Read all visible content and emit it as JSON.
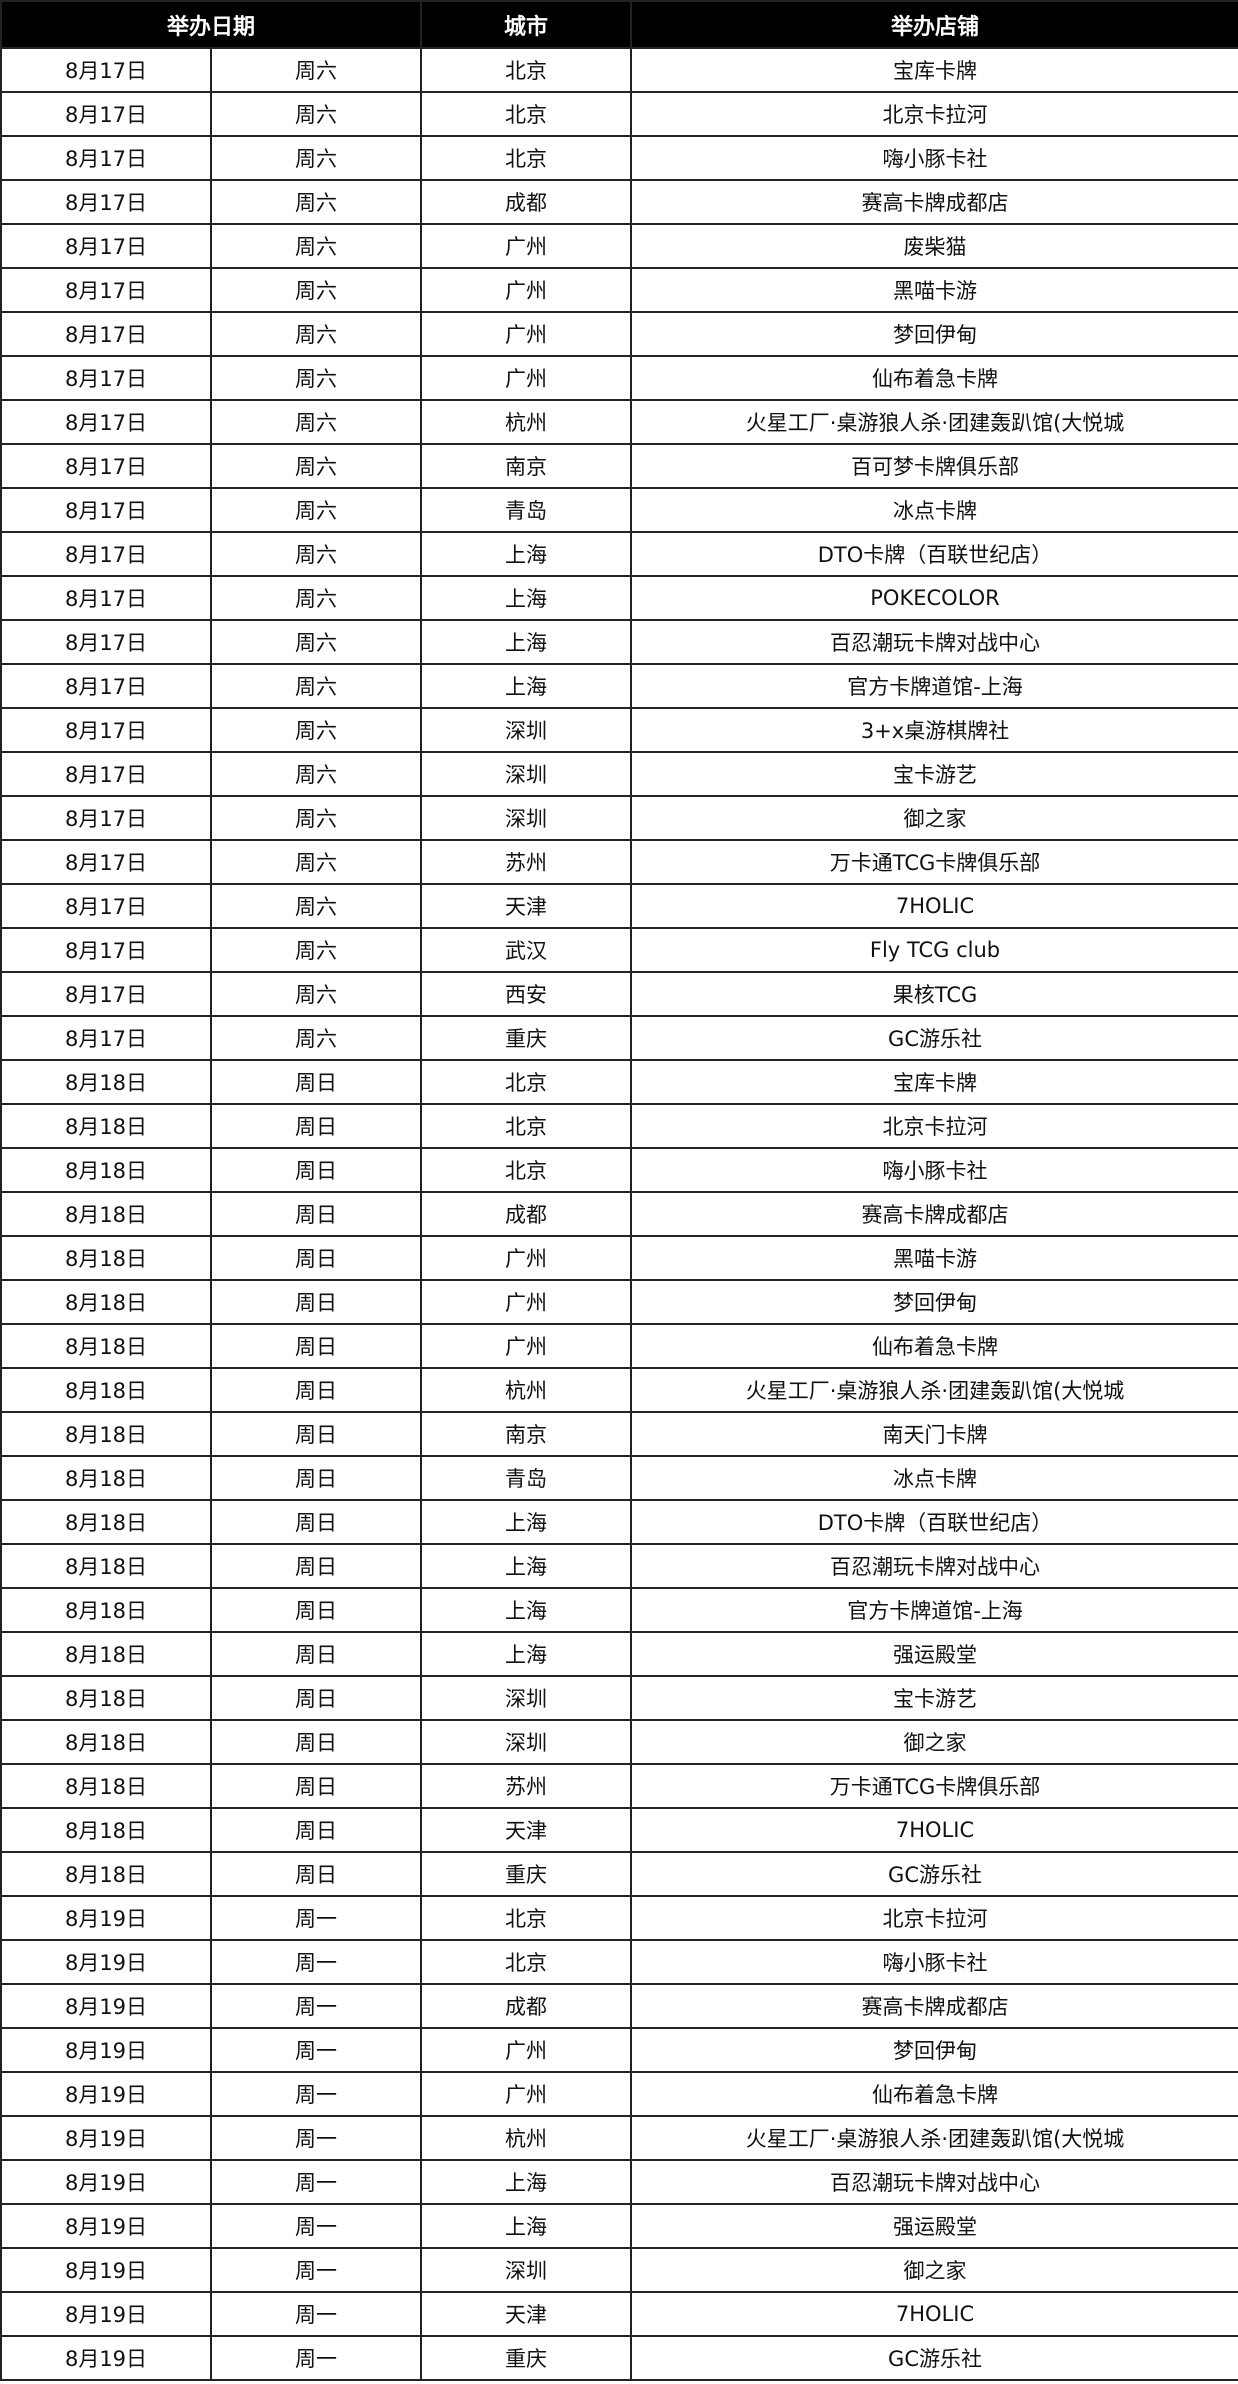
{
  "table": {
    "headers": [
      "举办日期",
      "城市",
      "举办店铺"
    ],
    "rows": [
      [
        "8月17日",
        "周六",
        "北京",
        "宝库卡牌"
      ],
      [
        "8月17日",
        "周六",
        "北京",
        "北京卡拉河"
      ],
      [
        "8月17日",
        "周六",
        "北京",
        "嗨小豚卡社"
      ],
      [
        "8月17日",
        "周六",
        "成都",
        "赛高卡牌成都店"
      ],
      [
        "8月17日",
        "周六",
        "广州",
        "废柴猫"
      ],
      [
        "8月17日",
        "周六",
        "广州",
        "黑喵卡游"
      ],
      [
        "8月17日",
        "周六",
        "广州",
        "梦回伊甸"
      ],
      [
        "8月17日",
        "周六",
        "广州",
        "仙布着急卡牌"
      ],
      [
        "8月17日",
        "周六",
        "杭州",
        "火星工厂·桌游狼人杀·团建轰趴馆(大悦城"
      ],
      [
        "8月17日",
        "周六",
        "南京",
        "百可梦卡牌俱乐部"
      ],
      [
        "8月17日",
        "周六",
        "青岛",
        "冰点卡牌"
      ],
      [
        "8月17日",
        "周六",
        "上海",
        "DTO卡牌（百联世纪店）"
      ],
      [
        "8月17日",
        "周六",
        "上海",
        "POKECOLOR"
      ],
      [
        "8月17日",
        "周六",
        "上海",
        "百忍潮玩卡牌对战中心"
      ],
      [
        "8月17日",
        "周六",
        "上海",
        "官方卡牌道馆-上海"
      ],
      [
        "8月17日",
        "周六",
        "深圳",
        "3+x桌游棋牌社"
      ],
      [
        "8月17日",
        "周六",
        "深圳",
        "宝卡游艺"
      ],
      [
        "8月17日",
        "周六",
        "深圳",
        "御之家"
      ],
      [
        "8月17日",
        "周六",
        "苏州",
        "万卡通TCG卡牌俱乐部"
      ],
      [
        "8月17日",
        "周六",
        "天津",
        "7HOLIC"
      ],
      [
        "8月17日",
        "周六",
        "武汉",
        "Fly TCG club"
      ],
      [
        "8月17日",
        "周六",
        "西安",
        "果核TCG"
      ],
      [
        "8月17日",
        "周六",
        "重庆",
        "GC游乐社"
      ],
      [
        "8月18日",
        "周日",
        "北京",
        "宝库卡牌"
      ],
      [
        "8月18日",
        "周日",
        "北京",
        "北京卡拉河"
      ],
      [
        "8月18日",
        "周日",
        "北京",
        "嗨小豚卡社"
      ],
      [
        "8月18日",
        "周日",
        "成都",
        "赛高卡牌成都店"
      ],
      [
        "8月18日",
        "周日",
        "广州",
        "黑喵卡游"
      ],
      [
        "8月18日",
        "周日",
        "广州",
        "梦回伊甸"
      ],
      [
        "8月18日",
        "周日",
        "广州",
        "仙布着急卡牌"
      ],
      [
        "8月18日",
        "周日",
        "杭州",
        "火星工厂·桌游狼人杀·团建轰趴馆(大悦城"
      ],
      [
        "8月18日",
        "周日",
        "南京",
        "南天门卡牌"
      ],
      [
        "8月18日",
        "周日",
        "青岛",
        "冰点卡牌"
      ],
      [
        "8月18日",
        "周日",
        "上海",
        "DTO卡牌（百联世纪店）"
      ],
      [
        "8月18日",
        "周日",
        "上海",
        "百忍潮玩卡牌对战中心"
      ],
      [
        "8月18日",
        "周日",
        "上海",
        "官方卡牌道馆-上海"
      ],
      [
        "8月18日",
        "周日",
        "上海",
        "强运殿堂"
      ],
      [
        "8月18日",
        "周日",
        "深圳",
        "宝卡游艺"
      ],
      [
        "8月18日",
        "周日",
        "深圳",
        "御之家"
      ],
      [
        "8月18日",
        "周日",
        "苏州",
        "万卡通TCG卡牌俱乐部"
      ],
      [
        "8月18日",
        "周日",
        "天津",
        "7HOLIC"
      ],
      [
        "8月18日",
        "周日",
        "重庆",
        "GC游乐社"
      ],
      [
        "8月19日",
        "周一",
        "北京",
        "北京卡拉河"
      ],
      [
        "8月19日",
        "周一",
        "北京",
        "嗨小豚卡社"
      ],
      [
        "8月19日",
        "周一",
        "成都",
        "赛高卡牌成都店"
      ],
      [
        "8月19日",
        "周一",
        "广州",
        "梦回伊甸"
      ],
      [
        "8月19日",
        "周一",
        "广州",
        "仙布着急卡牌"
      ],
      [
        "8月19日",
        "周一",
        "杭州",
        "火星工厂·桌游狼人杀·团建轰趴馆(大悦城"
      ],
      [
        "8月19日",
        "周一",
        "上海",
        "百忍潮玩卡牌对战中心"
      ],
      [
        "8月19日",
        "周一",
        "上海",
        "强运殿堂"
      ],
      [
        "8月19日",
        "周一",
        "深圳",
        "御之家"
      ],
      [
        "8月19日",
        "周一",
        "天津",
        "7HOLIC"
      ],
      [
        "8月19日",
        "周一",
        "重庆",
        "GC游乐社"
      ]
    ]
  }
}
